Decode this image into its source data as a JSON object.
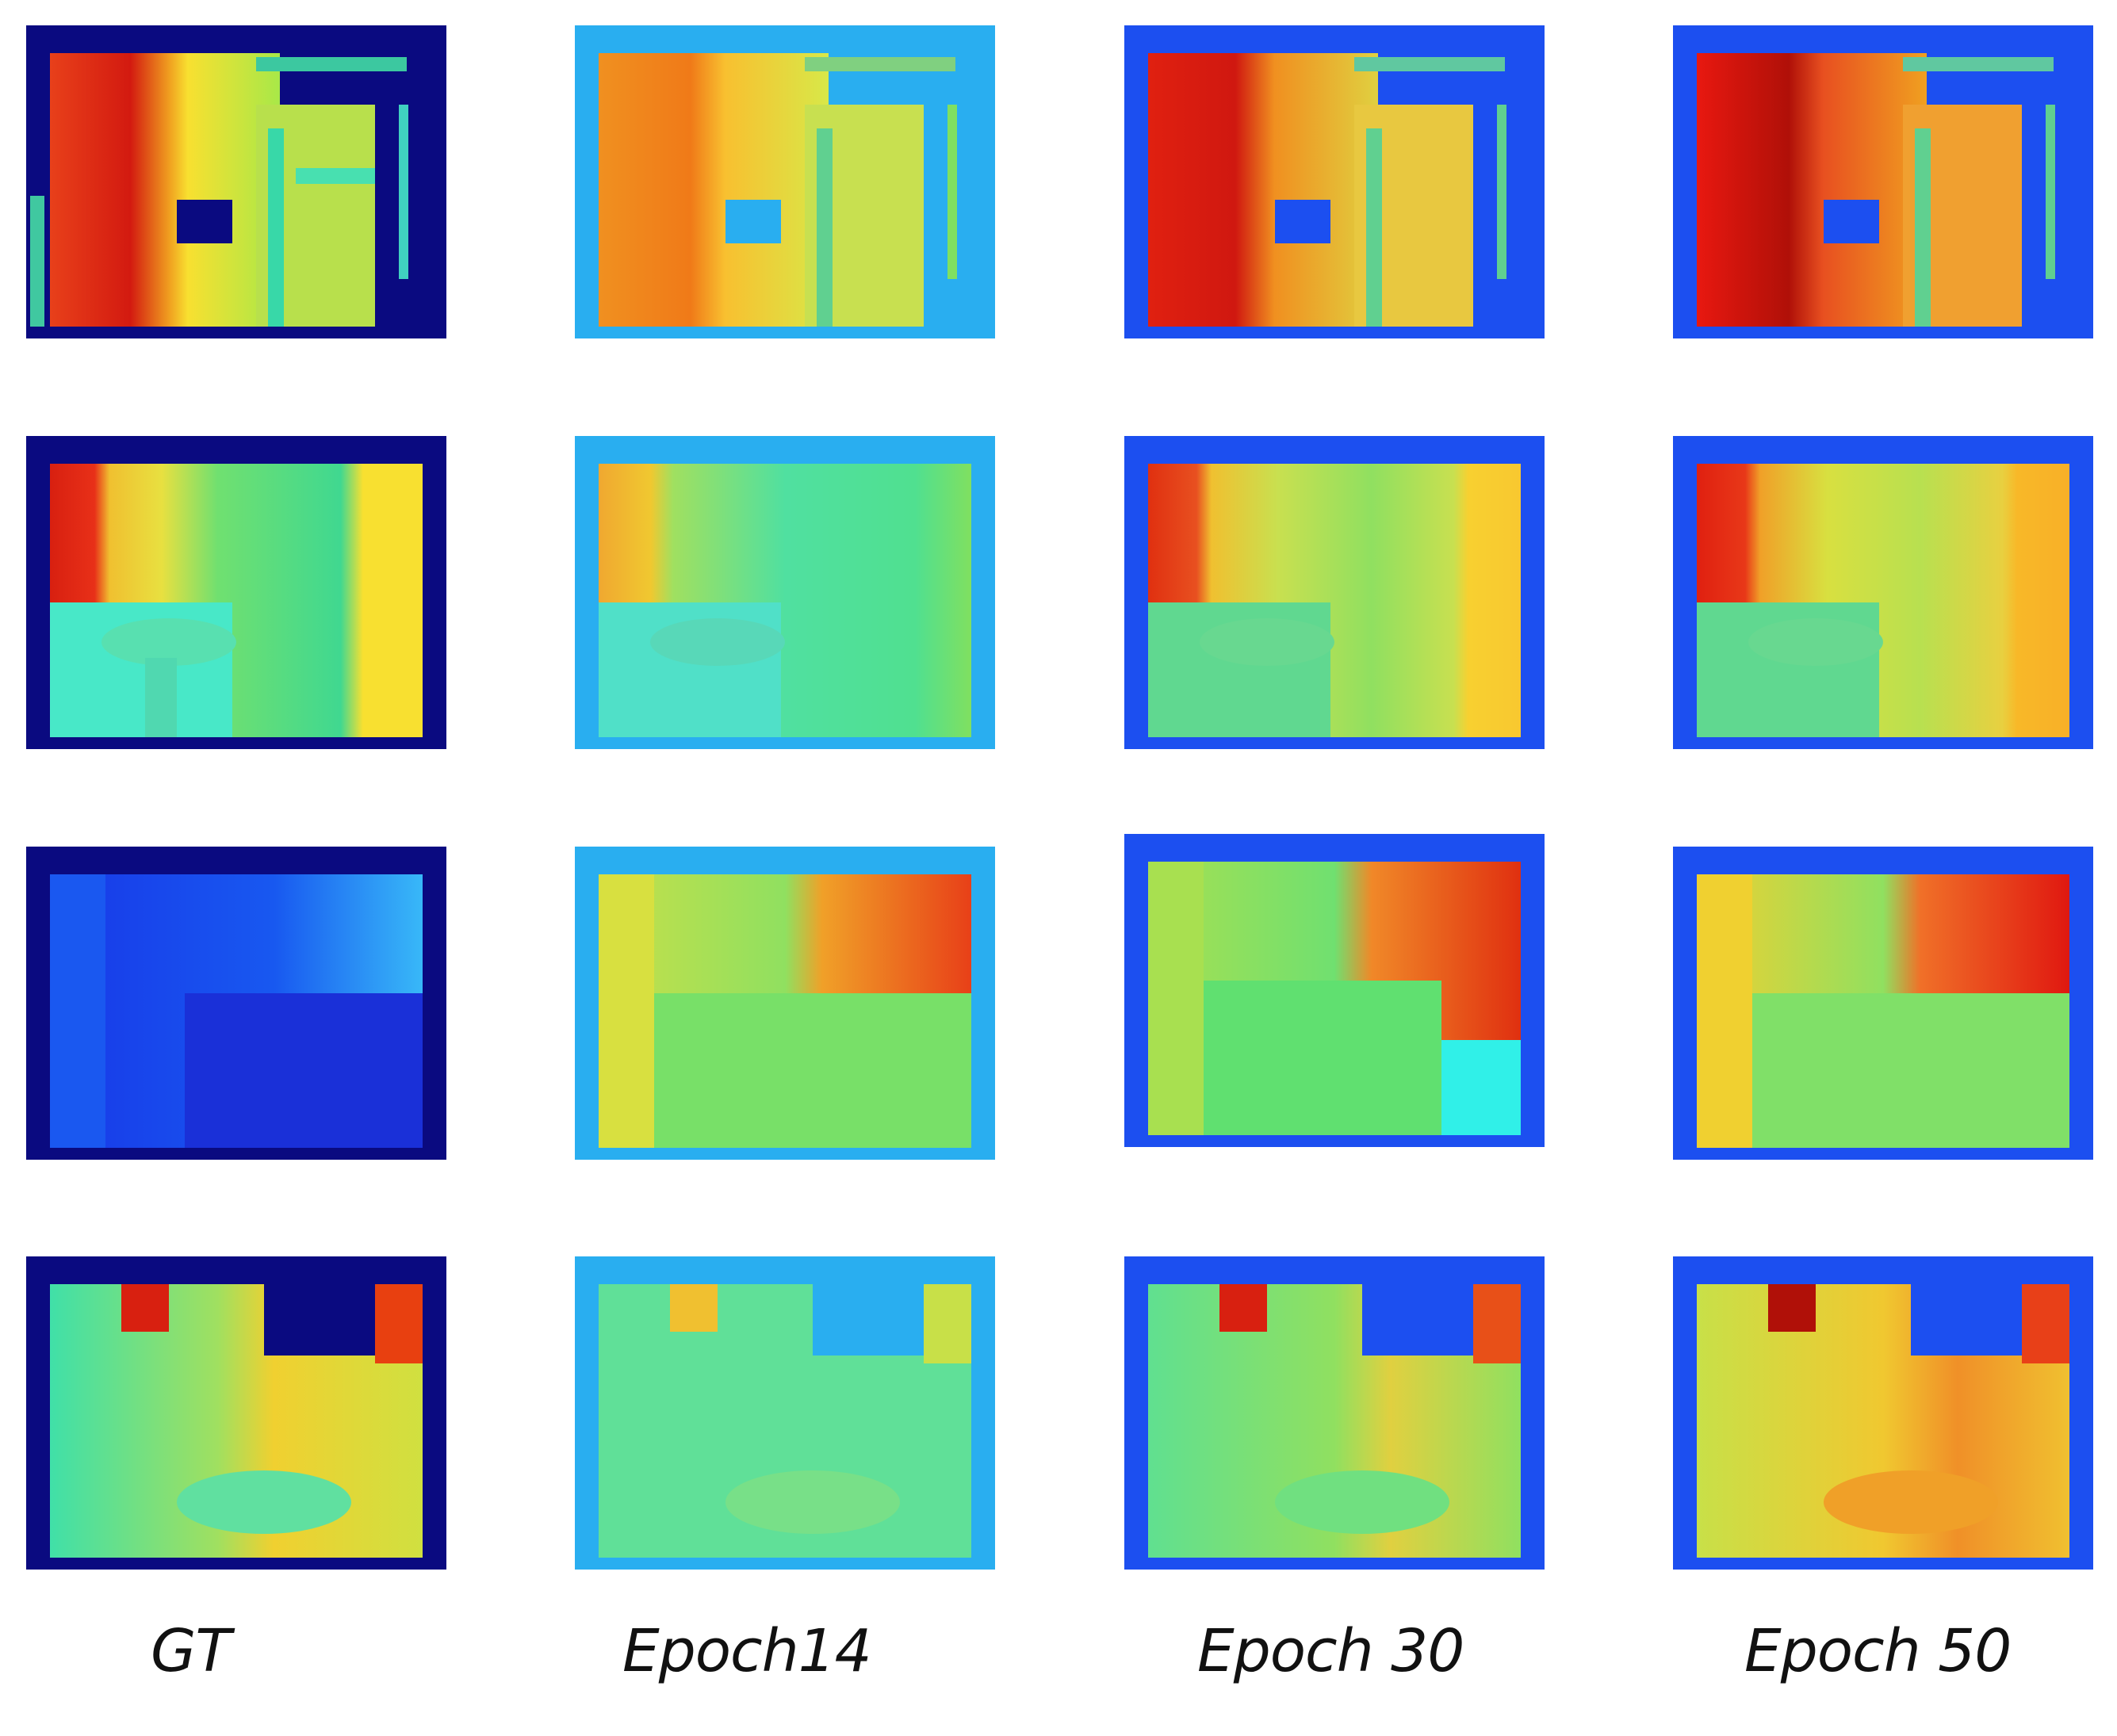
{
  "figure": {
    "columns": [
      {
        "label": "GT"
      },
      {
        "label": "Epoch14"
      },
      {
        "label": "Epoch 30"
      },
      {
        "label": "Epoch 50"
      }
    ],
    "rows": 4,
    "colormap": "jet",
    "border_colors": {
      "GT": "#0a0a80",
      "Epoch14": "#29aef0",
      "Epoch 30": "#1c4ff0",
      "Epoch 50": "#1c4ff0"
    }
  }
}
